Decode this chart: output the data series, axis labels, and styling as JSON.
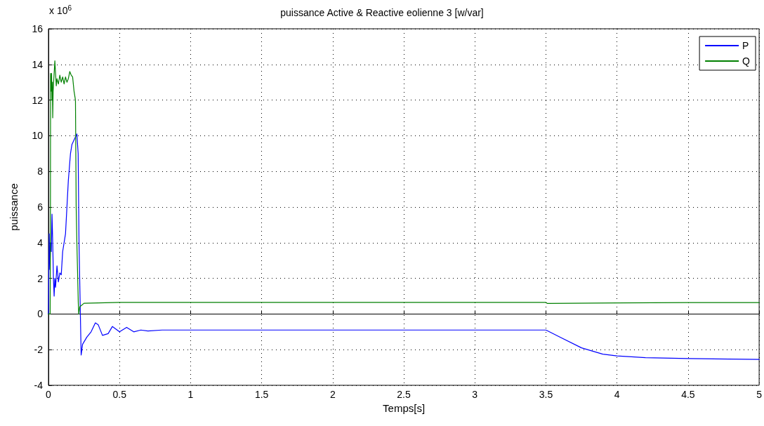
{
  "chart_data": {
    "type": "line",
    "title": "puissance Active & Reactive eolienne 3 [w/var]",
    "xlabel": "Temps[s]",
    "ylabel": "puissance",
    "annotations": [
      "x 10$^{6}$"
    ],
    "xlim": [
      0,
      5
    ],
    "xticks": [
      0,
      0.5,
      1,
      1.5,
      2,
      2.5,
      3,
      3.5,
      4,
      4.5,
      5
    ],
    "ylim": [
      -4,
      16
    ],
    "yticks": [
      -4,
      -2,
      0,
      2,
      4,
      6,
      8,
      10,
      12,
      14,
      16
    ],
    "grid": true,
    "legend": "top right",
    "line_style": "solid",
    "marker": "none",
    "series": [
      {
        "name": "P",
        "color": "#0000ff",
        "x": [
          0,
          0.005,
          0.01,
          0.015,
          0.02,
          0.025,
          0.03,
          0.035,
          0.04,
          0.045,
          0.05,
          0.06,
          0.07,
          0.08,
          0.09,
          0.1,
          0.12,
          0.14,
          0.155,
          0.165,
          0.2,
          0.209,
          0.215,
          0.23,
          0.24,
          0.27,
          0.3,
          0.33,
          0.35,
          0.38,
          0.42,
          0.45,
          0.5,
          0.55,
          0.6,
          0.65,
          0.7,
          0.8,
          3.5,
          3.6,
          3.75,
          3.9,
          4,
          4.2,
          4.5,
          5
        ],
        "values": [
          0,
          4.5,
          2.5,
          4,
          3.5,
          5.6,
          4,
          2,
          1,
          2,
          1.5,
          2.7,
          1.8,
          2.3,
          2.2,
          3.5,
          4.5,
          7.5,
          9,
          9.5,
          10.1,
          9,
          4,
          -2.3,
          -1.7,
          -1.3,
          -1,
          -0.5,
          -0.6,
          -1.2,
          -1.1,
          -0.7,
          -1,
          -0.75,
          -1,
          -0.9,
          -0.95,
          -0.9,
          -0.9,
          -1.3,
          -1.9,
          -2.25,
          -2.35,
          -2.45,
          -2.5,
          -2.55
        ]
      },
      {
        "name": "Q",
        "color": "#008000",
        "x": [
          0,
          0.012,
          0.014,
          0.015,
          0.018,
          0.022,
          0.025,
          0.028,
          0.03,
          0.033,
          0.04,
          0.045,
          0.05,
          0.055,
          0.06,
          0.07,
          0.08,
          0.09,
          0.1,
          0.11,
          0.12,
          0.13,
          0.14,
          0.15,
          0.16,
          0.17,
          0.18,
          0.19,
          0.195,
          0.2,
          0.21,
          0.213,
          0.22,
          0.25,
          0.5,
          1,
          2,
          3,
          3.5,
          3.51,
          4,
          4.5,
          5
        ],
        "values": [
          0,
          0,
          6,
          13.5,
          12.5,
          13.5,
          12,
          13,
          11,
          12.5,
          13.5,
          14.2,
          13.5,
          12.8,
          13.2,
          12.9,
          13.4,
          13,
          13.3,
          12.9,
          13.3,
          13,
          13.2,
          13.6,
          13.4,
          13.3,
          12.5,
          12,
          6,
          4,
          0.6,
          0,
          0.4,
          0.6,
          0.65,
          0.65,
          0.65,
          0.65,
          0.65,
          0.59,
          0.62,
          0.64,
          0.64
        ]
      }
    ]
  }
}
